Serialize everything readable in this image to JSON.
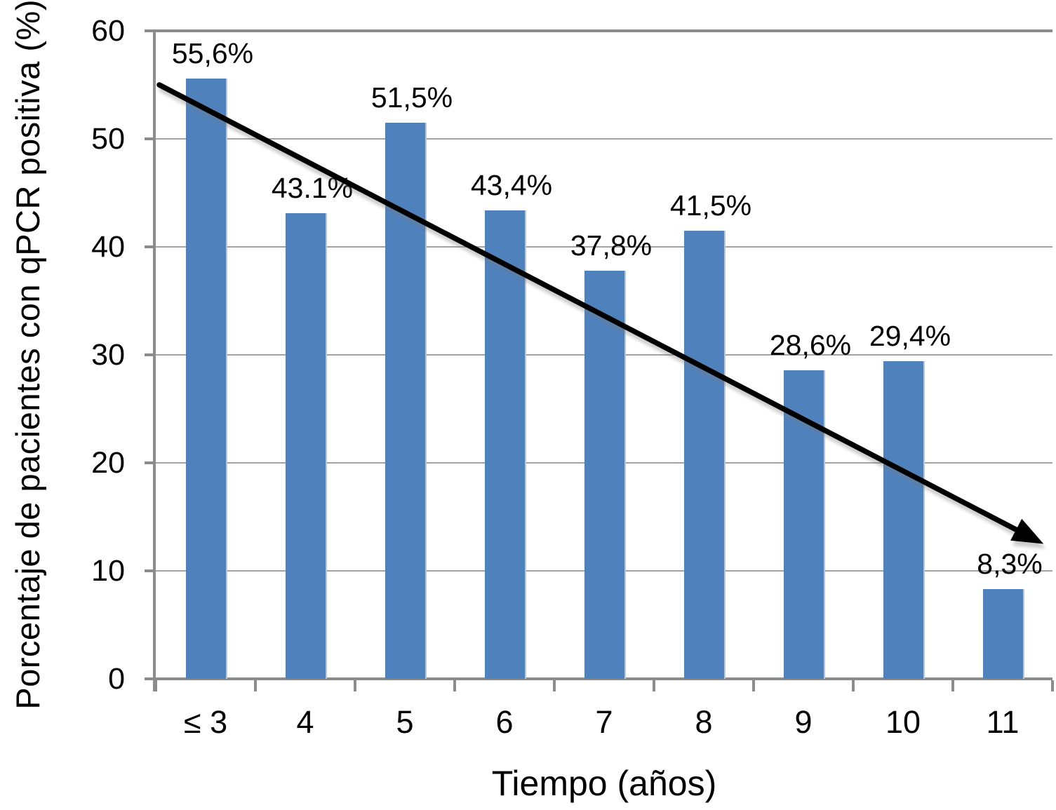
{
  "chart_data": {
    "type": "bar",
    "title": "",
    "xlabel": "Tiempo (años)",
    "ylabel": "Porcentaje de pacientes con qPCR positiva (%)",
    "categories": [
      "≤ 3",
      "4",
      "5",
      "6",
      "7",
      "8",
      "9",
      "10",
      "11"
    ],
    "values": [
      55.6,
      43.1,
      51.5,
      43.4,
      37.8,
      41.5,
      28.6,
      29.4,
      8.3
    ],
    "value_labels": [
      "55,6%",
      "43.1%",
      "51,5%",
      "43,4%",
      "37,8%",
      "41,5%",
      "28,6%",
      "29,4%",
      "8,3%"
    ],
    "ylim": [
      0,
      60
    ],
    "yticks": [
      0,
      10,
      20,
      30,
      40,
      50,
      60
    ],
    "grid": "horizontal",
    "legend": "none",
    "bar_color": "#4F81BD",
    "bar_edge_highlight": "#AFC8E4",
    "gridline_color": "#A3A3A3",
    "axis_color": "#8C8C8C",
    "text_color": "#000000",
    "trendline": {
      "type": "linear",
      "color": "#000000",
      "arrow_end": true,
      "start_value": 55.0,
      "end_value": 12.5
    }
  }
}
